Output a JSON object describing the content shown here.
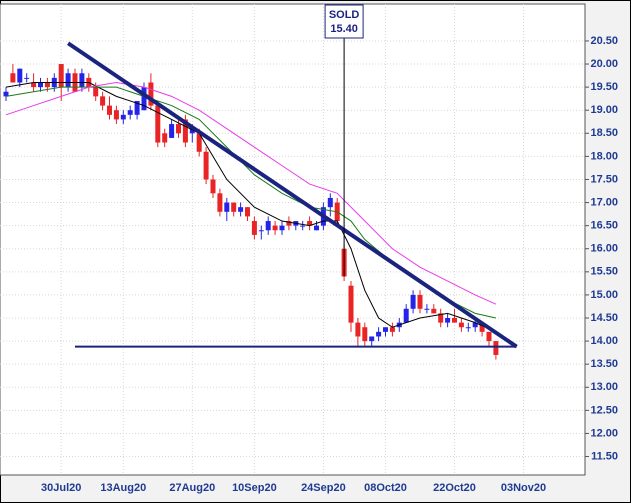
{
  "chart_data": {
    "type": "candlestick",
    "categories": [
      null,
      null,
      null,
      null,
      null,
      null,
      null,
      null,
      "30Jul20",
      null,
      null,
      null,
      null,
      null,
      null,
      null,
      null,
      "13Aug20",
      null,
      null,
      null,
      null,
      null,
      null,
      null,
      null,
      null,
      "27Aug20",
      null,
      null,
      null,
      null,
      null,
      null,
      null,
      null,
      "10Sep20",
      null,
      null,
      null,
      null,
      null,
      null,
      null,
      null,
      null,
      "24Sep20",
      null,
      null,
      null,
      null,
      null,
      null,
      null,
      null,
      "08Oct20",
      null,
      null,
      null,
      null,
      null,
      null,
      null,
      null,
      null,
      "22Oct20",
      null,
      null,
      null,
      null,
      null,
      null,
      null,
      null,
      null,
      "03Nov20",
      null
    ],
    "candles": [
      [
        19.3,
        19.5,
        19.2,
        19.4
      ],
      [
        19.8,
        20.0,
        19.6,
        19.6
      ],
      [
        19.6,
        19.9,
        19.5,
        19.9
      ],
      [
        19.7,
        19.8,
        19.6,
        19.7
      ],
      [
        19.6,
        19.8,
        19.4,
        19.5
      ],
      [
        19.5,
        19.7,
        19.4,
        19.6
      ],
      [
        19.6,
        19.7,
        19.4,
        19.5
      ],
      [
        19.5,
        19.8,
        19.4,
        19.7
      ],
      [
        20.0,
        20.0,
        19.2,
        19.5
      ],
      [
        19.5,
        19.9,
        19.4,
        19.8
      ],
      [
        19.8,
        19.9,
        19.4,
        19.4
      ],
      [
        19.5,
        19.9,
        19.4,
        19.8
      ],
      [
        19.7,
        19.8,
        19.4,
        19.5
      ],
      [
        19.5,
        19.6,
        19.2,
        19.3
      ],
      [
        19.3,
        19.4,
        19.0,
        19.1
      ],
      [
        19.1,
        19.3,
        18.8,
        18.9
      ],
      [
        19.0,
        19.1,
        18.7,
        18.8
      ],
      [
        18.8,
        19.0,
        18.7,
        18.9
      ],
      [
        18.9,
        19.1,
        18.8,
        19.0
      ],
      [
        18.9,
        19.2,
        18.8,
        19.2
      ],
      [
        19.0,
        19.6,
        19.0,
        19.5
      ],
      [
        19.6,
        19.8,
        19.0,
        19.1
      ],
      [
        19.1,
        19.2,
        18.2,
        18.3
      ],
      [
        18.5,
        18.6,
        18.2,
        18.3
      ],
      [
        18.4,
        18.8,
        18.4,
        18.7
      ],
      [
        18.7,
        18.8,
        18.4,
        18.5
      ],
      [
        18.8,
        18.9,
        18.2,
        18.3
      ],
      [
        18.5,
        18.7,
        18.3,
        18.6
      ],
      [
        18.5,
        18.6,
        18.0,
        18.1
      ],
      [
        18.1,
        18.2,
        17.4,
        17.5
      ],
      [
        17.5,
        17.6,
        17.1,
        17.2
      ],
      [
        17.2,
        17.3,
        16.7,
        16.8
      ],
      [
        16.8,
        17.1,
        16.6,
        17.0
      ],
      [
        17.0,
        17.0,
        16.7,
        16.8
      ],
      [
        16.8,
        17.0,
        16.7,
        16.9
      ],
      [
        16.9,
        16.9,
        16.6,
        16.7
      ],
      [
        16.6,
        16.7,
        16.2,
        16.3
      ],
      [
        16.4,
        16.5,
        16.2,
        16.4
      ],
      [
        16.4,
        16.7,
        16.3,
        16.6
      ],
      [
        16.5,
        16.6,
        16.3,
        16.4
      ],
      [
        16.4,
        16.6,
        16.3,
        16.5
      ],
      [
        16.6,
        16.7,
        16.4,
        16.5
      ],
      [
        16.5,
        16.6,
        16.4,
        16.6
      ],
      [
        16.5,
        16.6,
        16.4,
        16.5
      ],
      [
        16.6,
        16.7,
        16.4,
        16.5
      ],
      [
        16.4,
        16.6,
        16.4,
        16.5
      ],
      [
        16.5,
        17.0,
        16.4,
        16.9
      ],
      [
        16.9,
        17.2,
        16.7,
        17.1
      ],
      [
        17.0,
        17.1,
        16.5,
        16.6
      ],
      [
        16.0,
        16.1,
        15.3,
        15.4
      ],
      [
        15.2,
        15.3,
        14.2,
        14.4
      ],
      [
        14.4,
        14.5,
        13.9,
        14.1
      ],
      [
        14.3,
        14.4,
        13.9,
        14.0
      ],
      [
        14.0,
        14.1,
        13.9,
        14.1
      ],
      [
        14.1,
        14.3,
        14.0,
        14.2
      ],
      [
        14.2,
        14.3,
        14.1,
        14.3
      ],
      [
        14.3,
        14.4,
        14.1,
        14.2
      ],
      [
        14.3,
        14.5,
        14.2,
        14.4
      ],
      [
        14.4,
        14.8,
        14.4,
        14.7
      ],
      [
        14.7,
        15.1,
        14.6,
        15.0
      ],
      [
        15.0,
        15.1,
        14.6,
        14.7
      ],
      [
        14.7,
        14.8,
        14.6,
        14.7
      ],
      [
        14.7,
        14.8,
        14.6,
        14.6
      ],
      [
        14.6,
        14.7,
        14.3,
        14.4
      ],
      [
        14.4,
        14.6,
        14.3,
        14.5
      ],
      [
        14.5,
        14.7,
        14.4,
        14.4
      ],
      [
        14.4,
        14.5,
        14.2,
        14.3
      ],
      [
        14.3,
        14.4,
        14.2,
        14.3
      ],
      [
        14.3,
        14.5,
        14.2,
        14.4
      ],
      [
        14.4,
        14.4,
        14.1,
        14.2
      ],
      [
        14.2,
        14.2,
        13.9,
        14.0
      ],
      [
        14.0,
        14.0,
        13.6,
        13.7
      ],
      null,
      null,
      null,
      null,
      null
    ],
    "up_color": "#2424e8",
    "down_color": "#e82424",
    "overlays": [
      {
        "color": "#000000",
        "x": [
          0,
          4,
          8,
          12,
          16,
          20,
          24,
          28,
          30,
          32,
          36,
          40,
          44,
          46,
          48,
          50,
          52,
          54,
          56,
          60,
          64,
          68,
          71
        ],
        "values": [
          19.5,
          19.6,
          19.6,
          19.6,
          19.3,
          19.1,
          18.8,
          18.5,
          18.0,
          17.5,
          16.9,
          16.6,
          16.5,
          16.6,
          16.6,
          16.0,
          15.1,
          14.5,
          14.3,
          14.5,
          14.6,
          14.4,
          14.2
        ]
      },
      {
        "color": "#1a7a1a",
        "x": [
          0,
          8,
          16,
          20,
          24,
          28,
          32,
          36,
          40,
          44,
          48,
          50,
          52,
          56,
          60,
          64,
          68,
          71
        ],
        "values": [
          19.3,
          19.5,
          19.5,
          19.3,
          19.1,
          18.8,
          18.2,
          17.6,
          17.2,
          16.9,
          16.8,
          16.6,
          16.2,
          15.7,
          15.3,
          14.9,
          14.6,
          14.5
        ]
      },
      {
        "color": "#e83ce8",
        "x": [
          0,
          4,
          8,
          12,
          16,
          20,
          24,
          28,
          32,
          36,
          40,
          44,
          48,
          52,
          56,
          60,
          64,
          68,
          71
        ],
        "values": [
          18.9,
          19.1,
          19.3,
          19.5,
          19.6,
          19.5,
          19.3,
          19.0,
          18.6,
          18.2,
          17.8,
          17.4,
          17.2,
          16.6,
          16.0,
          15.6,
          15.3,
          15.0,
          14.8
        ]
      }
    ],
    "trendlines": [
      {
        "color": "#1a237e",
        "x": [
          9,
          74
        ],
        "values": [
          20.45,
          13.88
        ]
      },
      {
        "color": "#1a237e",
        "x": [
          10,
          74
        ],
        "values": [
          13.88,
          13.88
        ]
      }
    ],
    "annotation": {
      "label": "SOLD",
      "value_label": "15.40",
      "x": 49,
      "value": 15.4
    },
    "ylim": [
      11.1,
      21.3
    ],
    "yticks": [
      {
        "value": 11.5,
        "label": "11.50"
      },
      {
        "value": 12,
        "label": "12.00"
      },
      {
        "value": 12.5,
        "label": "12.50"
      },
      {
        "value": 13,
        "label": "13.00"
      },
      {
        "value": 13.5,
        "label": "13.50"
      },
      {
        "value": 14,
        "label": "14.00"
      },
      {
        "value": 14.5,
        "label": "14.50"
      },
      {
        "value": 15,
        "label": "15.00"
      },
      {
        "value": 15.5,
        "label": "15.50"
      },
      {
        "value": 16,
        "label": "16.00"
      },
      {
        "value": 16.5,
        "label": "16.50"
      },
      {
        "value": 17,
        "label": "17.00"
      },
      {
        "value": 17.5,
        "label": "17.50"
      },
      {
        "value": 18,
        "label": "18.00"
      },
      {
        "value": 18.5,
        "label": "18.50"
      },
      {
        "value": 19,
        "label": "19.00"
      },
      {
        "value": 19.5,
        "label": "19.50"
      },
      {
        "value": 20,
        "label": "20.00"
      },
      {
        "value": 20.5,
        "label": "20.50"
      }
    ],
    "grid": true
  }
}
